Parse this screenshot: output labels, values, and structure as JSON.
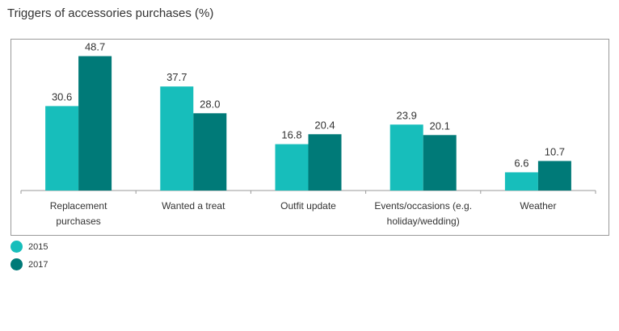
{
  "chart_data": {
    "type": "bar",
    "title": "Triggers of accessories purchases (%)",
    "categories": [
      [
        "Replacement",
        "purchases"
      ],
      [
        "Wanted a treat"
      ],
      [
        "Outfit update"
      ],
      [
        "Events/occasions (e.g.",
        "holiday/wedding)"
      ],
      [
        "Weather"
      ]
    ],
    "series": [
      {
        "name": "2015",
        "color": "#17BEBB",
        "values": [
          30.6,
          37.7,
          16.8,
          23.9,
          6.6
        ]
      },
      {
        "name": "2017",
        "color": "#007A78",
        "values": [
          48.7,
          28.0,
          20.4,
          20.1,
          10.7
        ]
      }
    ],
    "ylim": [
      0,
      55
    ],
    "grid": false,
    "legend_position": "bottom-left"
  }
}
